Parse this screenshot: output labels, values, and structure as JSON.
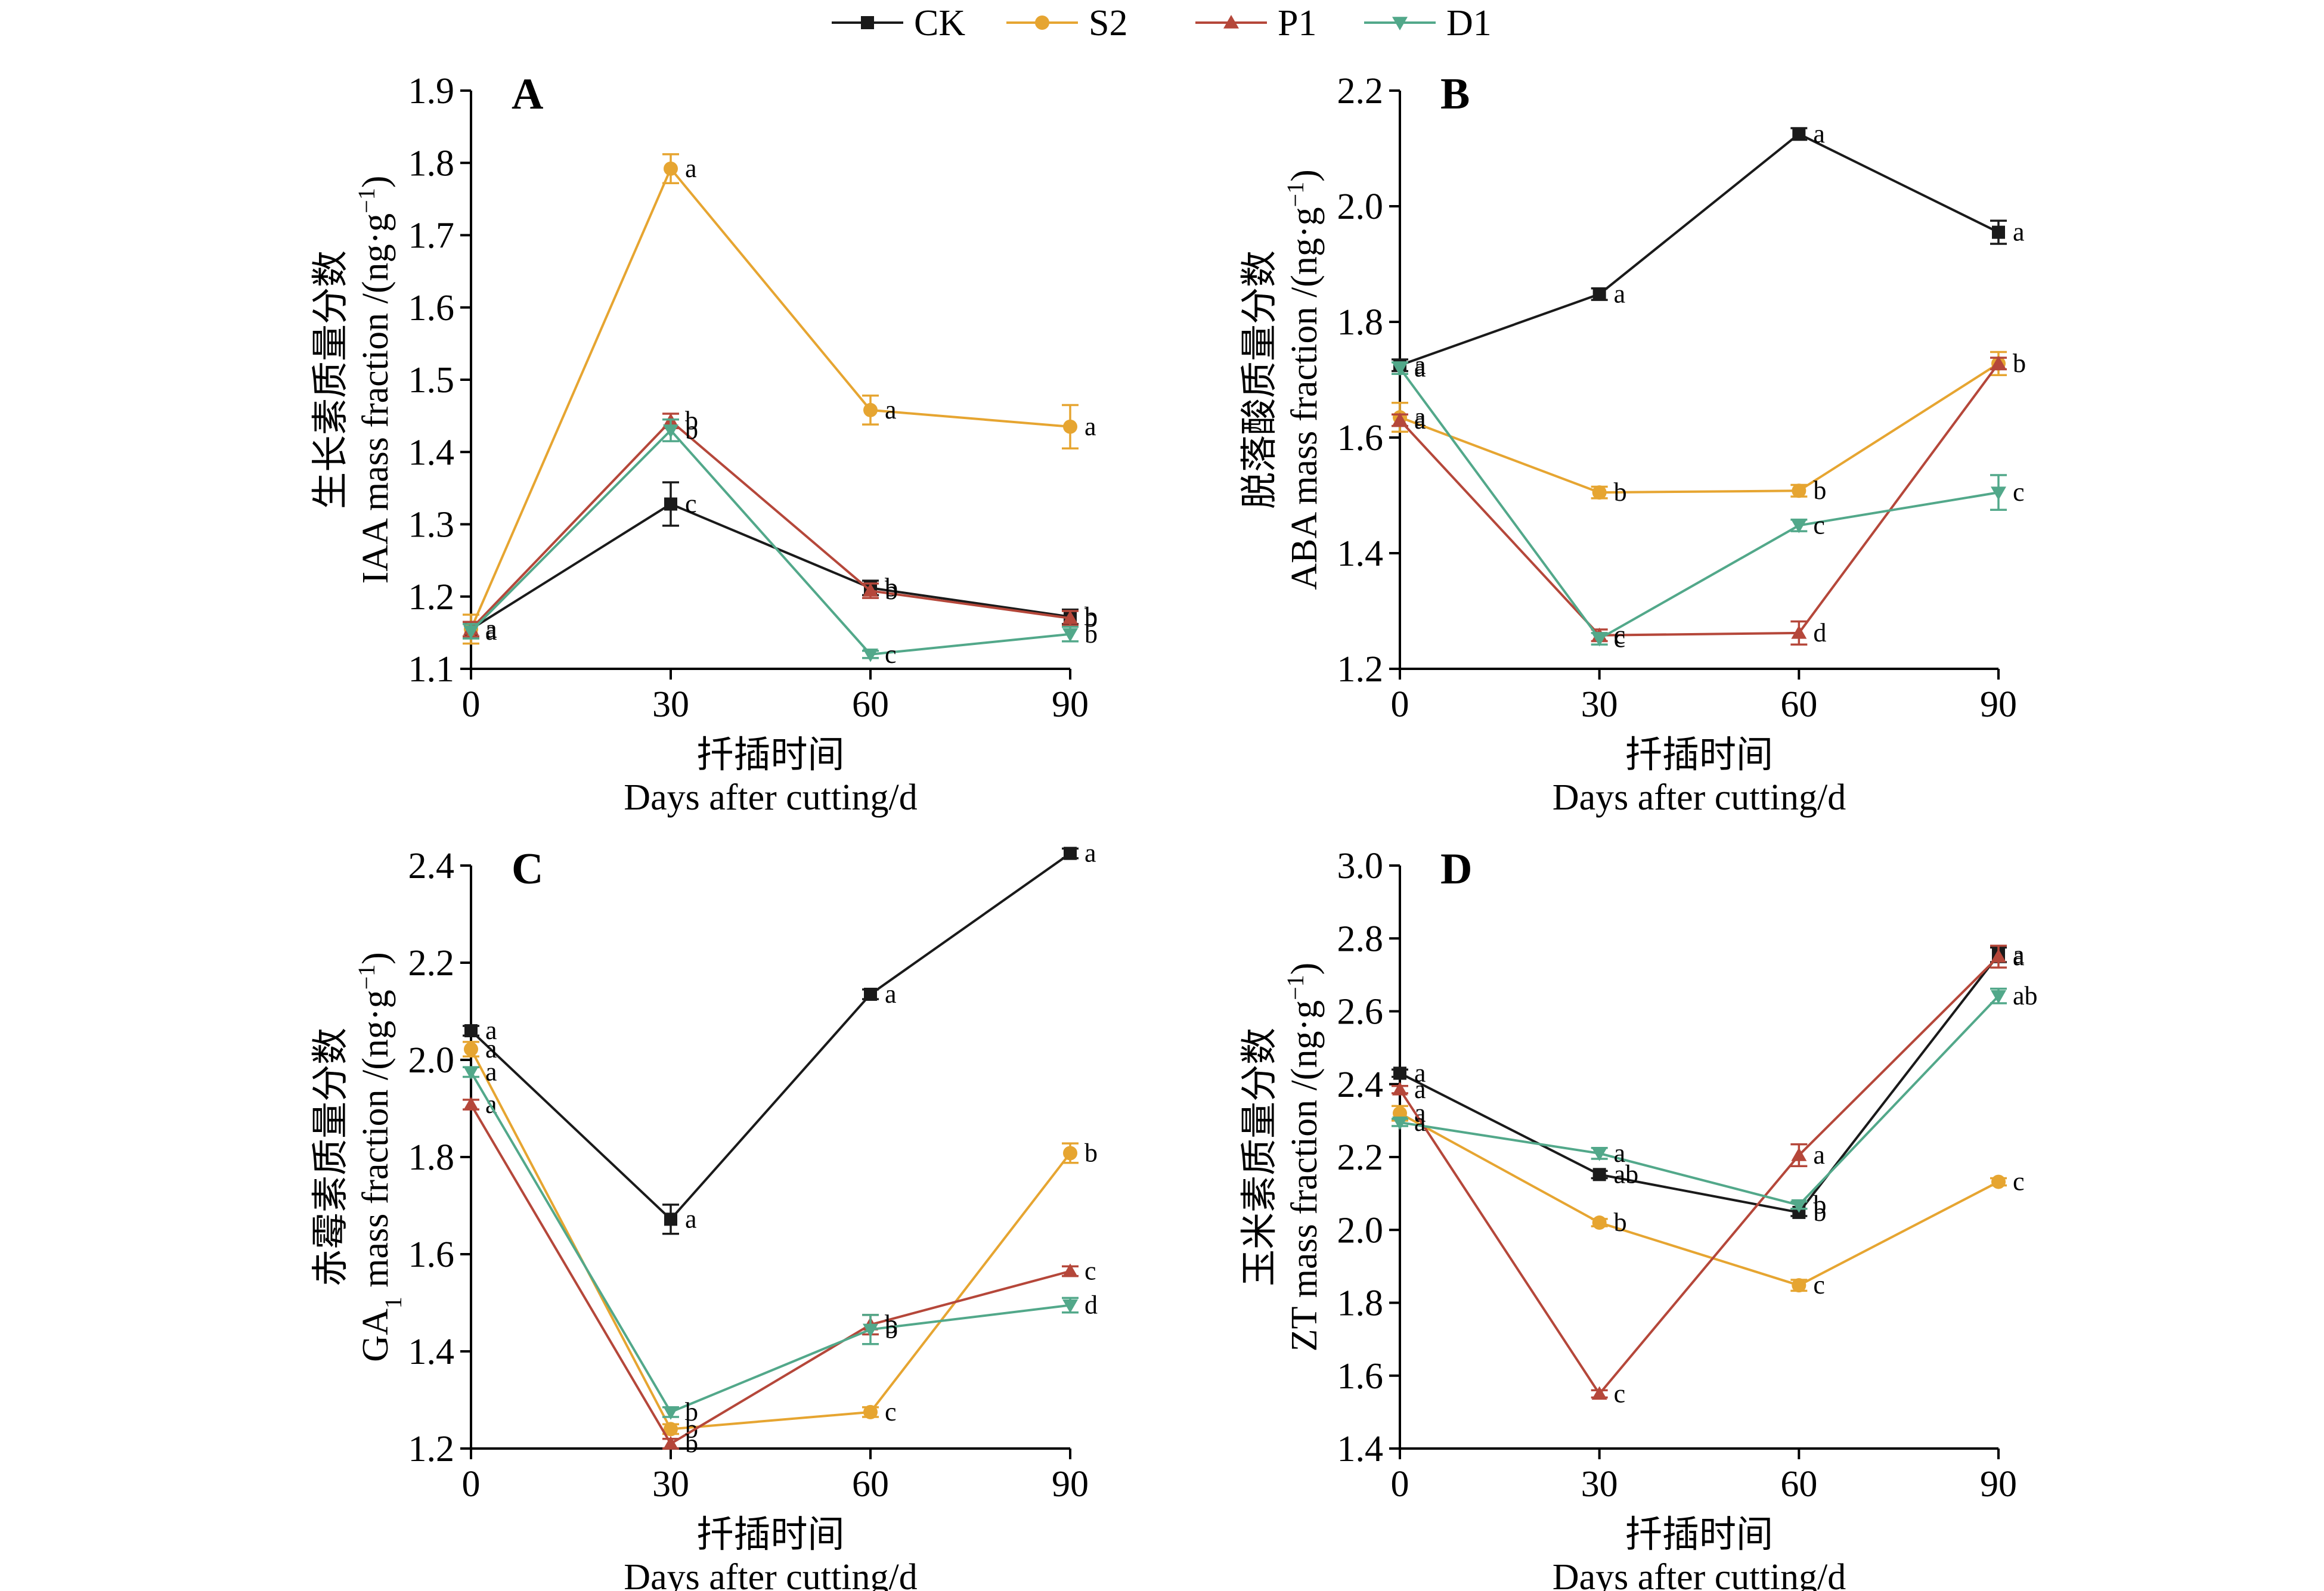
{
  "figure": {
    "series_styles": [
      {
        "name": "CK",
        "color": "#1a1a1a",
        "marker": "square"
      },
      {
        "name": "S2",
        "color": "#e6a531",
        "marker": "circle"
      },
      {
        "name": "P1",
        "color": "#b5473a",
        "marker": "triangle-up"
      },
      {
        "name": "D1",
        "color": "#52a88a",
        "marker": "triangle-down"
      }
    ]
  },
  "chart_data": [
    {
      "type": "line",
      "panel": "A",
      "ylabel_cn": "生长素质量分数",
      "ylabel_en": "IAA mass fraction /(ng·g",
      "ylabel_sup": "−1",
      "ylabel_end": ")",
      "xlabel_cn": "扦插时间",
      "xlabel_en": "Days after cutting/d",
      "x": [
        0,
        30,
        60,
        90
      ],
      "xlim": [
        0,
        90
      ],
      "ylim": [
        1.1,
        1.9
      ],
      "yticks": [
        "1.1",
        "1.2",
        "1.3",
        "1.4",
        "1.5",
        "1.6",
        "1.7",
        "1.8",
        "1.9"
      ],
      "xticks": [
        "0",
        "30",
        "60",
        "90"
      ],
      "series": [
        {
          "name": "CK",
          "values": [
            1.155,
            1.328,
            1.212,
            1.172
          ],
          "err": [
            0.01,
            0.03,
            0.01,
            0.01
          ],
          "letters": [
            "a",
            "c",
            "b",
            "b"
          ]
        },
        {
          "name": "S2",
          "values": [
            1.155,
            1.792,
            1.458,
            1.435
          ],
          "err": [
            0.02,
            0.02,
            0.02,
            0.03
          ],
          "letters": [
            "a",
            "a",
            "a",
            "a"
          ]
        },
        {
          "name": "P1",
          "values": [
            1.155,
            1.443,
            1.208,
            1.17
          ],
          "err": [
            0.01,
            0.01,
            0.01,
            0.01
          ],
          "letters": [
            "a",
            "b",
            "b",
            "b"
          ]
        },
        {
          "name": "D1",
          "values": [
            1.152,
            1.43,
            1.12,
            1.148
          ],
          "err": [
            0.01,
            0.015,
            0.005,
            0.01
          ],
          "letters": [
            "a",
            "b",
            "c",
            "b"
          ]
        }
      ]
    },
    {
      "type": "line",
      "panel": "B",
      "ylabel_cn": "脱落酸质量分数",
      "ylabel_en": "ABA mass fraction /(ng·g",
      "ylabel_sup": "−1",
      "ylabel_end": ")",
      "xlabel_cn": "扦插时间",
      "xlabel_en": "Days after cutting/d",
      "x": [
        0,
        30,
        60,
        90
      ],
      "xlim": [
        0,
        90
      ],
      "ylim": [
        1.2,
        2.2
      ],
      "yticks": [
        "1.2",
        "1.4",
        "1.6",
        "1.8",
        "2.0",
        "2.2"
      ],
      "xticks": [
        "0",
        "30",
        "60",
        "90"
      ],
      "series": [
        {
          "name": "CK",
          "values": [
            1.725,
            1.848,
            2.125,
            1.955
          ],
          "err": [
            0.01,
            0.01,
            0.01,
            0.02
          ],
          "letters": [
            "a",
            "a",
            "a",
            "a"
          ]
        },
        {
          "name": "S2",
          "values": [
            1.635,
            1.505,
            1.508,
            1.728
          ],
          "err": [
            0.025,
            0.01,
            0.01,
            0.02
          ],
          "letters": [
            "a",
            "b",
            "b",
            "b"
          ]
        },
        {
          "name": "P1",
          "values": [
            1.63,
            1.258,
            1.262,
            1.728
          ],
          "err": [
            0.01,
            0.01,
            0.02,
            0.01
          ],
          "letters": [
            "a",
            "c",
            "d",
            "b"
          ]
        },
        {
          "name": "D1",
          "values": [
            1.72,
            1.252,
            1.448,
            1.505
          ],
          "err": [
            0.01,
            0.01,
            0.01,
            0.03
          ],
          "letters": [
            "a",
            "c",
            "c",
            "c"
          ]
        }
      ]
    },
    {
      "type": "line",
      "panel": "C",
      "ylabel_cn": "赤霉素质量分数",
      "ylabel_en": "GA",
      "ylabel_sub": "1",
      "ylabel_en2": " mass fraction /(ng·g",
      "ylabel_sup": "−1",
      "ylabel_end": ")",
      "xlabel_cn": "扦插时间",
      "xlabel_en": "Days after cutting/d",
      "x": [
        0,
        30,
        60,
        90
      ],
      "xlim": [
        0,
        90
      ],
      "ylim": [
        1.2,
        2.4
      ],
      "yticks": [
        "1.2",
        "1.4",
        "1.6",
        "1.8",
        "2.0",
        "2.2",
        "2.4"
      ],
      "xticks": [
        "0",
        "30",
        "60",
        "90"
      ],
      "series": [
        {
          "name": "CK",
          "values": [
            2.06,
            1.672,
            2.135,
            2.425
          ],
          "err": [
            0.01,
            0.03,
            0.01,
            0.01
          ],
          "letters": [
            "a",
            "a",
            "a",
            "a"
          ]
        },
        {
          "name": "S2",
          "values": [
            2.022,
            1.24,
            1.275,
            1.808
          ],
          "err": [
            0.015,
            0.01,
            0.01,
            0.02
          ],
          "letters": [
            "a",
            "b",
            "c",
            "b"
          ]
        },
        {
          "name": "P1",
          "values": [
            1.908,
            1.21,
            1.455,
            1.565
          ],
          "err": [
            0.01,
            0.01,
            0.02,
            0.01
          ],
          "letters": [
            "a",
            "b",
            "b",
            "c"
          ]
        },
        {
          "name": "D1",
          "values": [
            1.975,
            1.275,
            1.445,
            1.495
          ],
          "err": [
            0.01,
            0.01,
            0.03,
            0.015
          ],
          "letters": [
            "a",
            "b",
            "b",
            "d"
          ]
        }
      ]
    },
    {
      "type": "line",
      "panel": "D",
      "ylabel_cn": "玉米素质量分数",
      "ylabel_en": "ZT mass fraction /(ng·g",
      "ylabel_sup": "−1",
      "ylabel_end": ")",
      "xlabel_cn": "扦插时间",
      "xlabel_en": "Days after cutting/d",
      "x": [
        0,
        30,
        60,
        90
      ],
      "xlim": [
        0,
        90
      ],
      "ylim": [
        1.4,
        3.0
      ],
      "yticks": [
        "1.4",
        "1.6",
        "1.8",
        "2.0",
        "2.2",
        "2.4",
        "2.6",
        "2.8",
        "3.0"
      ],
      "xticks": [
        "0",
        "30",
        "60",
        "90"
      ],
      "series": [
        {
          "name": "CK",
          "values": [
            2.43,
            2.152,
            2.048,
            2.755
          ],
          "err": [
            0.01,
            0.01,
            0.01,
            0.02
          ],
          "letters": [
            "a",
            "ab",
            "b",
            "a"
          ]
        },
        {
          "name": "S2",
          "values": [
            2.32,
            2.02,
            1.848,
            2.132
          ],
          "err": [
            0.02,
            0.01,
            0.015,
            0.01
          ],
          "letters": [
            "a",
            "b",
            "c",
            "c"
          ]
        },
        {
          "name": "P1",
          "values": [
            2.385,
            1.55,
            2.205,
            2.75
          ],
          "err": [
            0.01,
            0.01,
            0.03,
            0.03
          ],
          "letters": [
            "a",
            "c",
            "a",
            "a"
          ]
        },
        {
          "name": "D1",
          "values": [
            2.295,
            2.21,
            2.068,
            2.642
          ],
          "err": [
            0.01,
            0.015,
            0.01,
            0.02
          ],
          "letters": [
            "a",
            "a",
            "b",
            "ab"
          ]
        }
      ]
    }
  ]
}
